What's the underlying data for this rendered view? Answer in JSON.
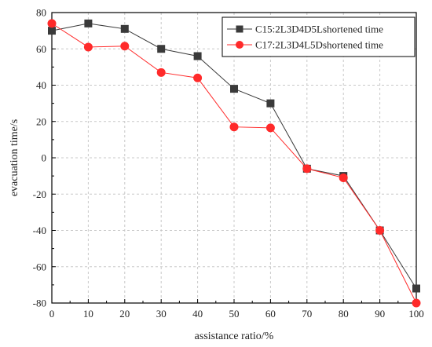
{
  "chart_data": {
    "type": "line",
    "title": "",
    "xlabel": "assistance ratio/%",
    "ylabel": "evacuation time/s",
    "x": [
      0,
      10,
      20,
      30,
      40,
      50,
      60,
      70,
      80,
      90,
      100
    ],
    "xlim": [
      0,
      100
    ],
    "ylim": [
      -80,
      80
    ],
    "xticks": [
      0,
      10,
      20,
      30,
      40,
      50,
      60,
      70,
      80,
      90,
      100
    ],
    "yticks": [
      -80,
      -60,
      -40,
      -20,
      0,
      20,
      40,
      60,
      80
    ],
    "grid": true,
    "legend_position": "top-right",
    "series": [
      {
        "name": "C15:2L3D4D5Lshortened time",
        "color": "#3a3a3a",
        "marker": "square",
        "values": [
          70,
          74,
          71,
          60,
          56,
          38,
          30,
          -6,
          -10,
          -40,
          -72
        ]
      },
      {
        "name": "C17:2L3D4L5Dshortened time",
        "color": "#ff2a2a",
        "marker": "circle",
        "values": [
          74,
          61,
          61.5,
          47,
          44,
          17,
          16.5,
          -6,
          -11,
          -40,
          -80
        ]
      }
    ]
  }
}
